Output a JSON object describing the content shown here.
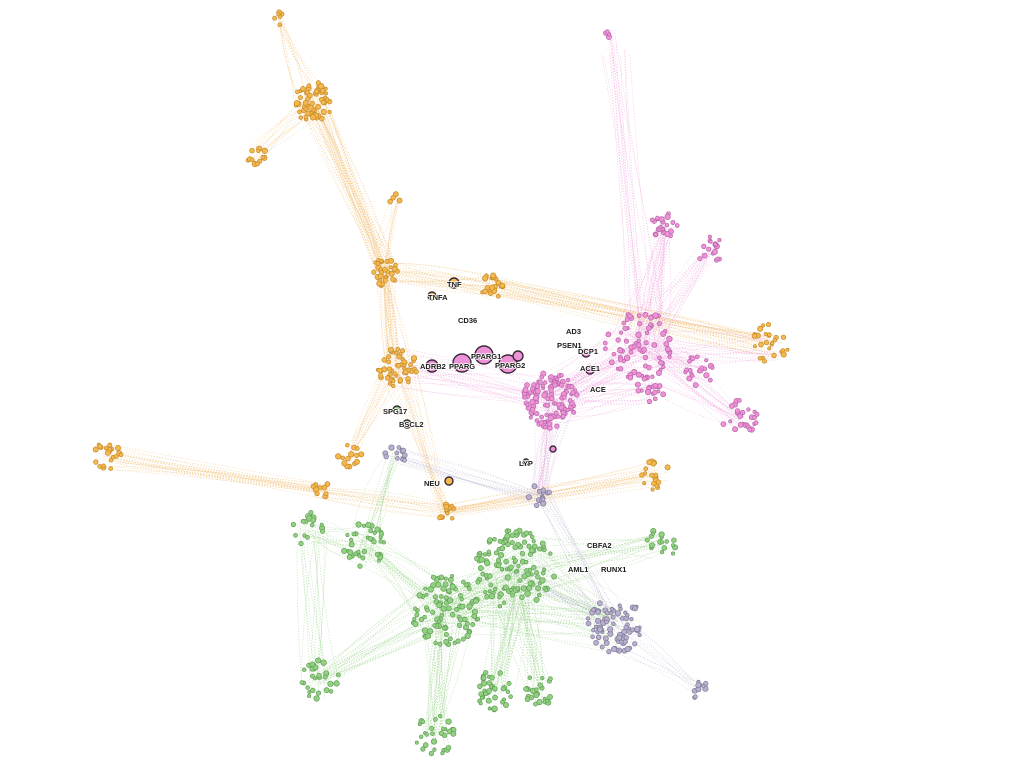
{
  "network": {
    "colors": {
      "orange": "#f5b84e",
      "orange_edge": "#f2c27a",
      "pink": "#ee92d8",
      "pink_edge": "#f0a8e0",
      "green": "#93d084",
      "green_edge": "#9fd590",
      "lavender": "#b8b0cc",
      "lavender_edge": "#c4bdd6",
      "hub_stroke": "#3a2a3a",
      "background": "#ffffff"
    },
    "communities": [
      {
        "id": "orange",
        "name": "orange community"
      },
      {
        "id": "pink",
        "name": "pink community"
      },
      {
        "id": "green",
        "name": "green community"
      },
      {
        "id": "lavender",
        "name": "lavender community"
      }
    ],
    "labels": [
      {
        "text": "TNF",
        "group": "orange"
      },
      {
        "text": "TNFA",
        "group": "orange"
      },
      {
        "text": "CD36",
        "group": "pink"
      },
      {
        "text": "AD3",
        "group": "pink"
      },
      {
        "text": "PSEN1",
        "group": "pink"
      },
      {
        "text": "DCP1",
        "group": "pink"
      },
      {
        "text": "ACE1",
        "group": "pink"
      },
      {
        "text": "ACE",
        "group": "pink"
      },
      {
        "text": "PPARG1",
        "group": "pink"
      },
      {
        "text": "PPARG",
        "group": "pink"
      },
      {
        "text": "PPARG2",
        "group": "pink"
      },
      {
        "text": "ADRB2",
        "group": "pink"
      },
      {
        "text": "SPG17",
        "group": "green"
      },
      {
        "text": "BSCL2",
        "group": "green"
      },
      {
        "text": "LYP",
        "group": "lavender"
      },
      {
        "text": "NEU",
        "group": "orange"
      },
      {
        "text": "CBFA2",
        "group": "green"
      },
      {
        "text": "AML1",
        "group": "lavender"
      },
      {
        "text": "RUNX1",
        "group": "lavender"
      }
    ]
  }
}
